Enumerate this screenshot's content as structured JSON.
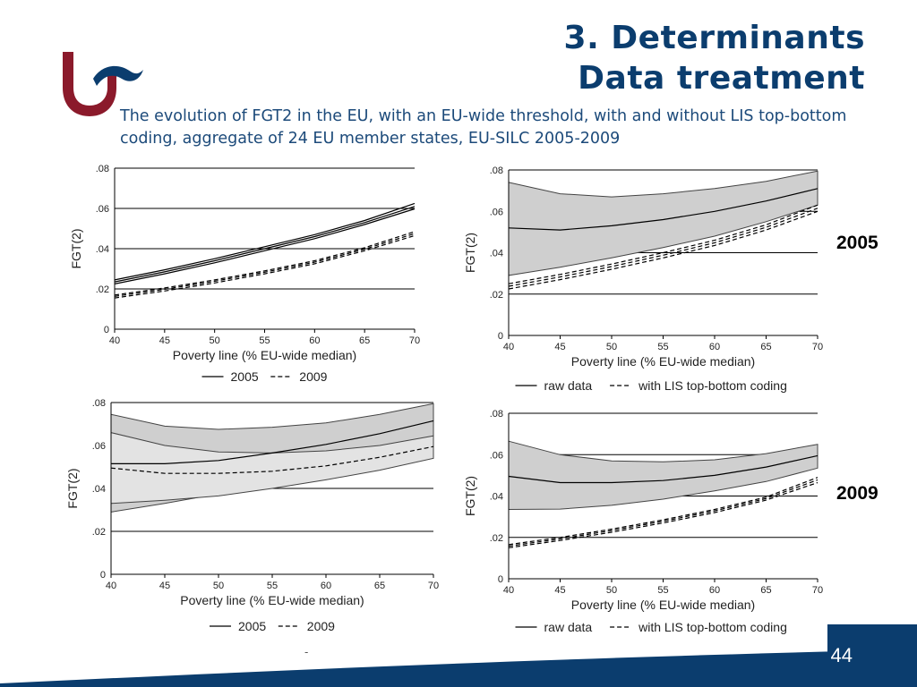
{
  "slide": {
    "title_line1": "3. Determinants",
    "title_line2": "Data treatment",
    "subtitle": "The evolution of FGT2 in the EU, with an EU-wide threshold, with and without LIS top-bottom coding, aggregate of 24 EU member states, EU-SILC 2005-2009",
    "label_2005": "2005",
    "label_2009": "2009",
    "page_number": "44",
    "footer_mark": "-"
  },
  "colors": {
    "brand_red": "#8b1a2b",
    "brand_blue": "#0b3d6e"
  },
  "chart_data": [
    {
      "type": "line",
      "panel": "top-left",
      "xlabel": "Poverty line (% EU-wide median)",
      "ylabel": "FGT(2)",
      "xlim": [
        40,
        70
      ],
      "ylim": [
        0,
        0.08
      ],
      "x_ticks": [
        "40",
        "45",
        "50",
        "55",
        "60",
        "65",
        "70"
      ],
      "y_ticks": [
        "0",
        ".02",
        ".04",
        ".06",
        ".08"
      ],
      "legend": [
        {
          "style": "solid",
          "label": "2005"
        },
        {
          "style": "dashed",
          "label": "2009"
        }
      ],
      "series": [
        {
          "name": "2005 upper",
          "style": "solid",
          "x": [
            40,
            45,
            50,
            55,
            60,
            65,
            70
          ],
          "y": [
            0.0245,
            0.0295,
            0.035,
            0.041,
            0.047,
            0.054,
            0.0625
          ]
        },
        {
          "name": "2005 center",
          "style": "solid",
          "x": [
            40,
            45,
            50,
            55,
            60,
            65,
            70
          ],
          "y": [
            0.0235,
            0.0285,
            0.034,
            0.04,
            0.046,
            0.053,
            0.061
          ]
        },
        {
          "name": "2005 lower",
          "style": "solid",
          "x": [
            40,
            45,
            50,
            55,
            60,
            65,
            70
          ],
          "y": [
            0.0225,
            0.0275,
            0.033,
            0.039,
            0.045,
            0.052,
            0.0598
          ]
        },
        {
          "name": "2009 upper",
          "style": "dashed",
          "x": [
            40,
            45,
            50,
            55,
            60,
            65,
            70
          ],
          "y": [
            0.017,
            0.0205,
            0.0245,
            0.029,
            0.034,
            0.0405,
            0.0485
          ]
        },
        {
          "name": "2009 center",
          "style": "dashed",
          "x": [
            40,
            45,
            50,
            55,
            60,
            65,
            70
          ],
          "y": [
            0.0163,
            0.0198,
            0.0238,
            0.0283,
            0.0333,
            0.0398,
            0.0475
          ]
        },
        {
          "name": "2009 lower",
          "style": "dashed",
          "x": [
            40,
            45,
            50,
            55,
            60,
            65,
            70
          ],
          "y": [
            0.0155,
            0.019,
            0.023,
            0.0275,
            0.0325,
            0.039,
            0.0465
          ]
        }
      ]
    },
    {
      "type": "area",
      "panel": "top-right",
      "xlabel": "Poverty line (% EU-wide median)",
      "ylabel": "FGT(2)",
      "xlim": [
        40,
        70
      ],
      "ylim": [
        0,
        0.08
      ],
      "x_ticks": [
        "40",
        "45",
        "50",
        "55",
        "60",
        "65",
        "70"
      ],
      "y_ticks": [
        "0",
        ".02",
        ".04",
        ".06",
        ".08"
      ],
      "legend": [
        {
          "style": "solid",
          "label": "raw data"
        },
        {
          "style": "dashed",
          "label": "with LIS top-bottom coding"
        }
      ],
      "bands": [
        {
          "x": [
            40,
            45,
            50,
            55,
            60,
            65,
            70
          ],
          "upper": [
            0.074,
            0.0685,
            0.067,
            0.0685,
            0.071,
            0.0745,
            0.0795
          ],
          "lower": [
            0.029,
            0.033,
            0.0375,
            0.0425,
            0.048,
            0.055,
            0.063
          ]
        }
      ],
      "series": [
        {
          "name": "raw data center",
          "style": "solid",
          "x": [
            40,
            45,
            50,
            55,
            60,
            65,
            70
          ],
          "y": [
            0.052,
            0.051,
            0.053,
            0.056,
            0.06,
            0.065,
            0.071
          ]
        },
        {
          "name": "LIS upper",
          "style": "dashed",
          "x": [
            40,
            45,
            50,
            55,
            60,
            65,
            70
          ],
          "y": [
            0.025,
            0.0295,
            0.0345,
            0.04,
            0.046,
            0.0535,
            0.063
          ]
        },
        {
          "name": "LIS center",
          "style": "dashed",
          "x": [
            40,
            45,
            50,
            55,
            60,
            65,
            70
          ],
          "y": [
            0.0238,
            0.0283,
            0.0333,
            0.0388,
            0.0448,
            0.0523,
            0.0615
          ]
        },
        {
          "name": "LIS lower",
          "style": "dashed",
          "x": [
            40,
            45,
            50,
            55,
            60,
            65,
            70
          ],
          "y": [
            0.0225,
            0.027,
            0.032,
            0.0375,
            0.0435,
            0.051,
            0.06
          ]
        }
      ]
    },
    {
      "type": "area",
      "panel": "bottom-left",
      "xlabel": "Poverty line (% EU-wide median)",
      "ylabel": "FGT(2)",
      "xlim": [
        40,
        70
      ],
      "ylim": [
        0,
        0.08
      ],
      "x_ticks": [
        "40",
        "45",
        "50",
        "55",
        "60",
        "65",
        "70"
      ],
      "y_ticks": [
        "0",
        ".02",
        ".04",
        ".06",
        ".08"
      ],
      "legend": [
        {
          "style": "solid",
          "label": "2005"
        },
        {
          "style": "dashed",
          "label": "2009"
        }
      ],
      "bands": [
        {
          "x": [
            40,
            45,
            50,
            55,
            60,
            65,
            70
          ],
          "upper": [
            0.0745,
            0.069,
            0.0675,
            0.0685,
            0.0705,
            0.0745,
            0.0795
          ],
          "lower": [
            0.029,
            0.033,
            0.0375,
            0.0435,
            0.05,
            0.057,
            0.0635
          ]
        },
        {
          "x": [
            40,
            45,
            50,
            55,
            60,
            65,
            70
          ],
          "upper": [
            0.066,
            0.06,
            0.057,
            0.0565,
            0.0575,
            0.06,
            0.0645
          ],
          "lower": [
            0.033,
            0.0345,
            0.0365,
            0.04,
            0.044,
            0.0485,
            0.054
          ]
        }
      ],
      "series": [
        {
          "name": "2005 center",
          "style": "solid",
          "x": [
            40,
            45,
            50,
            55,
            60,
            65,
            70
          ],
          "y": [
            0.0515,
            0.0515,
            0.053,
            0.0565,
            0.0605,
            0.0655,
            0.0715
          ]
        },
        {
          "name": "2009 center",
          "style": "dashed",
          "x": [
            40,
            45,
            50,
            55,
            60,
            65,
            70
          ],
          "y": [
            0.0495,
            0.047,
            0.047,
            0.048,
            0.0505,
            0.0545,
            0.0595
          ]
        }
      ]
    },
    {
      "type": "area",
      "panel": "bottom-right",
      "xlabel": "Poverty line (% EU-wide median)",
      "ylabel": "FGT(2)",
      "xlim": [
        40,
        70
      ],
      "ylim": [
        0,
        0.08
      ],
      "x_ticks": [
        "40",
        "45",
        "50",
        "55",
        "60",
        "65",
        "70"
      ],
      "y_ticks": [
        "0",
        ".02",
        ".04",
        ".06",
        ".08"
      ],
      "legend": [
        {
          "style": "solid",
          "label": "raw data"
        },
        {
          "style": "dashed",
          "label": "with LIS top-bottom coding"
        }
      ],
      "bands": [
        {
          "x": [
            40,
            45,
            50,
            55,
            60,
            65,
            70
          ],
          "upper": [
            0.0665,
            0.06,
            0.057,
            0.0565,
            0.0575,
            0.0605,
            0.065
          ],
          "lower": [
            0.0335,
            0.0337,
            0.0355,
            0.0385,
            0.0425,
            0.047,
            0.0535
          ]
        }
      ],
      "series": [
        {
          "name": "raw data center",
          "style": "solid",
          "x": [
            40,
            45,
            50,
            55,
            60,
            65,
            70
          ],
          "y": [
            0.0495,
            0.0465,
            0.0465,
            0.0475,
            0.05,
            0.054,
            0.0595
          ]
        },
        {
          "name": "LIS upper",
          "style": "dashed",
          "x": [
            40,
            45,
            50,
            55,
            60,
            65,
            70
          ],
          "y": [
            0.0165,
            0.02,
            0.024,
            0.0285,
            0.0335,
            0.0395,
            0.049
          ]
        },
        {
          "name": "LIS center",
          "style": "dashed",
          "x": [
            40,
            45,
            50,
            55,
            60,
            65,
            70
          ],
          "y": [
            0.0158,
            0.0193,
            0.0233,
            0.0278,
            0.0328,
            0.0388,
            0.0478
          ]
        },
        {
          "name": "LIS lower",
          "style": "dashed",
          "x": [
            40,
            45,
            50,
            55,
            60,
            65,
            70
          ],
          "y": [
            0.015,
            0.0185,
            0.0225,
            0.027,
            0.032,
            0.038,
            0.0465
          ]
        }
      ]
    }
  ]
}
